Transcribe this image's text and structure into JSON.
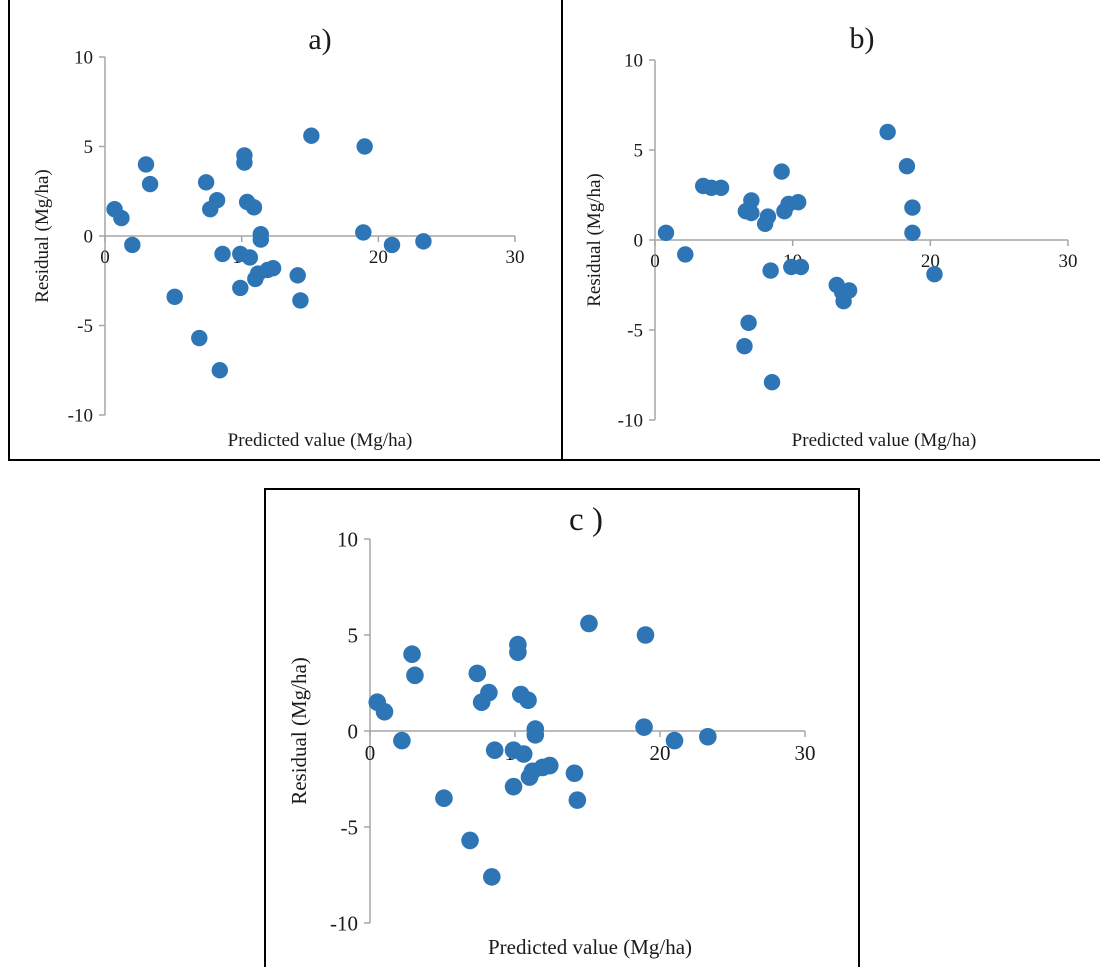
{
  "colors": {
    "marker": "#2E75B6",
    "axis": "#a6a6a6",
    "text": "#1a1a1a",
    "frame": "#000000"
  },
  "chart_data": [
    {
      "type": "scatter",
      "title": "a)",
      "xlabel": "Predicted value (Mg/ha)",
      "ylabel": "Residual (Mg/ha)",
      "xlim": [
        0,
        30
      ],
      "ylim": [
        -10,
        10
      ],
      "xticks": [
        "0",
        "10",
        "20",
        "30"
      ],
      "yticks": [
        "10",
        "5",
        "0",
        "-5",
        "-10"
      ],
      "grid": false,
      "legend": "none",
      "points": [
        [
          0.7,
          1.5
        ],
        [
          1.2,
          1.0
        ],
        [
          2.0,
          -0.5
        ],
        [
          3.0,
          4.0
        ],
        [
          3.3,
          2.9
        ],
        [
          5.1,
          -3.4
        ],
        [
          6.9,
          -5.7
        ],
        [
          7.4,
          3.0
        ],
        [
          7.7,
          1.5
        ],
        [
          8.2,
          2.0
        ],
        [
          8.4,
          -7.5
        ],
        [
          8.6,
          -1.0
        ],
        [
          9.9,
          -1.0
        ],
        [
          9.9,
          -2.9
        ],
        [
          10.2,
          4.5
        ],
        [
          10.2,
          4.1
        ],
        [
          10.4,
          1.9
        ],
        [
          10.6,
          -1.2
        ],
        [
          10.9,
          1.6
        ],
        [
          11.0,
          -2.4
        ],
        [
          11.2,
          -2.1
        ],
        [
          11.4,
          0.1
        ],
        [
          11.4,
          -0.2
        ],
        [
          11.9,
          -1.9
        ],
        [
          12.3,
          -1.8
        ],
        [
          14.1,
          -2.2
        ],
        [
          14.3,
          -3.6
        ],
        [
          15.1,
          5.6
        ],
        [
          18.9,
          0.2
        ],
        [
          19.0,
          5.0
        ],
        [
          21.0,
          -0.5
        ],
        [
          23.3,
          -0.3
        ]
      ]
    },
    {
      "type": "scatter",
      "title": "b)",
      "xlabel": "Predicted value (Mg/ha)",
      "ylabel": "Residual (Mg/ha)",
      "xlim": [
        0,
        30
      ],
      "ylim": [
        -10,
        10
      ],
      "xticks": [
        "0",
        "10",
        "20",
        "30"
      ],
      "yticks": [
        "10",
        "5",
        "0",
        "-5",
        "-10"
      ],
      "grid": false,
      "legend": "none",
      "points": [
        [
          0.8,
          0.4
        ],
        [
          2.2,
          -0.8
        ],
        [
          3.5,
          3.0
        ],
        [
          4.1,
          2.9
        ],
        [
          4.8,
          2.9
        ],
        [
          6.5,
          -5.9
        ],
        [
          6.6,
          1.6
        ],
        [
          6.8,
          -4.6
        ],
        [
          7.0,
          2.2
        ],
        [
          7.0,
          1.5
        ],
        [
          8.0,
          0.9
        ],
        [
          8.2,
          1.3
        ],
        [
          8.4,
          -1.7
        ],
        [
          8.5,
          -7.9
        ],
        [
          9.2,
          3.8
        ],
        [
          9.4,
          1.6
        ],
        [
          9.7,
          2.0
        ],
        [
          9.9,
          -1.5
        ],
        [
          10.4,
          2.1
        ],
        [
          10.6,
          -1.5
        ],
        [
          13.2,
          -2.5
        ],
        [
          13.6,
          -2.9
        ],
        [
          13.7,
          -3.4
        ],
        [
          14.1,
          -2.8
        ],
        [
          16.9,
          6.0
        ],
        [
          18.3,
          4.1
        ],
        [
          18.7,
          1.8
        ],
        [
          18.7,
          0.4
        ],
        [
          20.3,
          -1.9
        ]
      ]
    },
    {
      "type": "scatter",
      "title": "c )",
      "xlabel": "Predicted value (Mg/ha)",
      "ylabel": "Residual (Mg/ha)",
      "xlim": [
        0,
        30
      ],
      "ylim": [
        -10,
        10
      ],
      "xticks": [
        "0",
        "10",
        "20",
        "30"
      ],
      "yticks": [
        "10",
        "5",
        "0",
        "-5",
        "-10"
      ],
      "grid": false,
      "legend": "none",
      "points": [
        [
          0.5,
          1.5
        ],
        [
          1.0,
          1.0
        ],
        [
          2.2,
          -0.5
        ],
        [
          2.9,
          4.0
        ],
        [
          3.1,
          2.9
        ],
        [
          5.1,
          -3.5
        ],
        [
          6.9,
          -5.7
        ],
        [
          7.4,
          3.0
        ],
        [
          7.7,
          1.5
        ],
        [
          8.2,
          2.0
        ],
        [
          8.4,
          -7.6
        ],
        [
          8.6,
          -1.0
        ],
        [
          9.9,
          -1.0
        ],
        [
          9.9,
          -2.9
        ],
        [
          10.2,
          4.5
        ],
        [
          10.2,
          4.1
        ],
        [
          10.4,
          1.9
        ],
        [
          10.6,
          -1.2
        ],
        [
          10.9,
          1.6
        ],
        [
          11.0,
          -2.4
        ],
        [
          11.2,
          -2.1
        ],
        [
          11.4,
          0.1
        ],
        [
          11.4,
          -0.2
        ],
        [
          11.9,
          -1.9
        ],
        [
          12.4,
          -1.8
        ],
        [
          14.1,
          -2.2
        ],
        [
          14.3,
          -3.6
        ],
        [
          15.1,
          5.6
        ],
        [
          18.9,
          0.2
        ],
        [
          19.0,
          5.0
        ],
        [
          21.0,
          -0.5
        ],
        [
          23.3,
          -0.3
        ]
      ]
    }
  ]
}
